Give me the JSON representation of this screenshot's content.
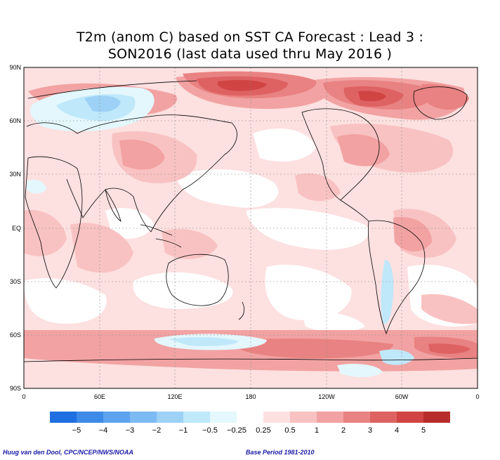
{
  "title": {
    "line1": "T2m (anom C) based on SST CA Forecast : Lead 3 :",
    "line2": "SON2016 (last data used thru May 2016 )"
  },
  "map": {
    "lat_labels": [
      "90N",
      "60N",
      "30N",
      "EQ",
      "30S",
      "60S",
      "90S"
    ],
    "lon_labels": [
      "0",
      "60E",
      "120E",
      "180",
      "120W",
      "60W",
      "0"
    ]
  },
  "colorbar": {
    "colors": [
      "#1f6fe0",
      "#3e8ae8",
      "#5ea3ee",
      "#7cbaf3",
      "#9dd1f6",
      "#bfe8fa",
      "#e3f7fc",
      "#ffffff",
      "#fde0e0",
      "#f9c2c2",
      "#f2a2a2",
      "#e98282",
      "#df6262",
      "#d14444",
      "#b82c2c"
    ],
    "labels": [
      "−5",
      "−4",
      "−3",
      "−2",
      "−1",
      "−0.5",
      "−0.25",
      "0.25",
      "0.5",
      "1",
      "2",
      "3",
      "4",
      "5"
    ]
  },
  "credits": {
    "left": "Huug van den Dool, CPC/NCEP/NWS/NOAA",
    "right": "Base Period 1981-2010"
  }
}
